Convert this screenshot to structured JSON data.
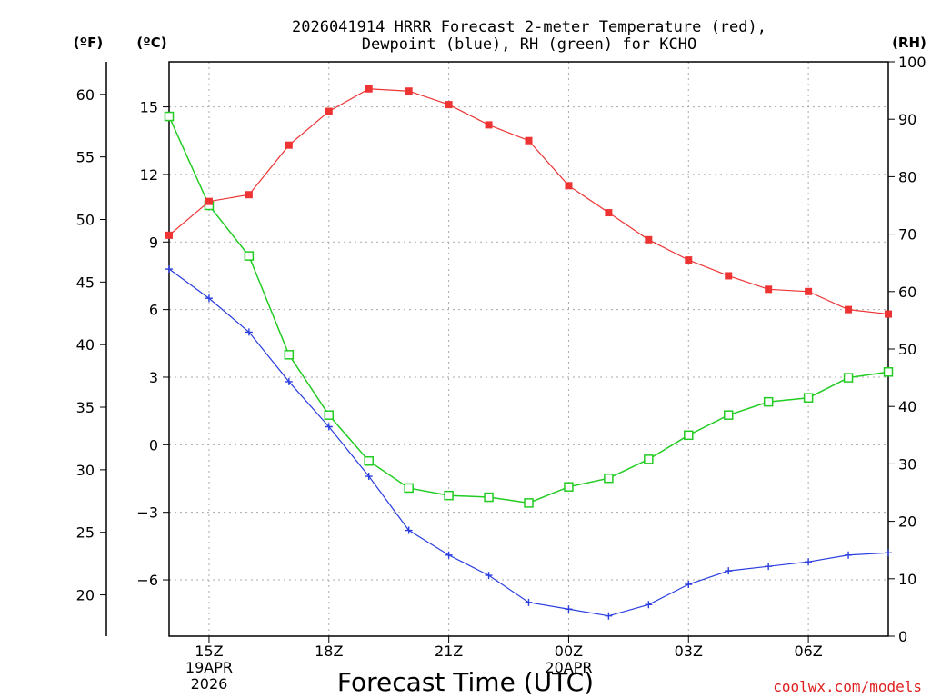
{
  "chart_data": {
    "type": "line",
    "title_line1": "2026041914 HRRR Forecast 2-meter Temperature (red),",
    "title_line2": "Dewpoint (blue), RH (green) for KCHO",
    "units": {
      "fahrenheit": "(ºF)",
      "celsius": "(ºC)",
      "rh": "(RH)"
    },
    "xlabel": "Forecast Time (UTC)",
    "credit": "coolwx.com/models",
    "x_hours": [
      14,
      15,
      16,
      17,
      18,
      19,
      20,
      21,
      22,
      23,
      24,
      25,
      26,
      27,
      28,
      29,
      30,
      31,
      32
    ],
    "x_ticks": [
      {
        "hour": 15,
        "lines": [
          "15Z",
          "19APR",
          "2026"
        ]
      },
      {
        "hour": 18,
        "lines": [
          "18Z"
        ]
      },
      {
        "hour": 21,
        "lines": [
          "21Z"
        ]
      },
      {
        "hour": 24,
        "lines": [
          "00Z",
          "20APR"
        ]
      },
      {
        "hour": 27,
        "lines": [
          "03Z"
        ]
      },
      {
        "hour": 30,
        "lines": [
          "06Z"
        ]
      }
    ],
    "celsius_ticks": [
      "15",
      "12",
      "9",
      "6",
      "3",
      "0",
      "−3",
      "−6"
    ],
    "celsius_tick_values": [
      15,
      12,
      9,
      6,
      3,
      0,
      -3,
      -6
    ],
    "celsius_range": [
      -8.5,
      17.0
    ],
    "fahrenheit_ticks": [
      "60",
      "55",
      "50",
      "45",
      "40",
      "35",
      "30",
      "25",
      "20"
    ],
    "fahrenheit_tick_values": [
      60,
      55,
      50,
      45,
      40,
      35,
      30,
      25,
      20
    ],
    "rh_ticks": [
      "100",
      "90",
      "80",
      "70",
      "60",
      "50",
      "40",
      "30",
      "20",
      "10",
      "0"
    ],
    "rh_tick_values": [
      100,
      90,
      80,
      70,
      60,
      50,
      40,
      30,
      20,
      10,
      0
    ],
    "rh_range": [
      0,
      100
    ],
    "colors": {
      "temperature": "#ee3333",
      "dewpoint": "#2a3ee0",
      "rh": "#22cc22",
      "credit": "#e02020",
      "grid": "#aaaaaa"
    },
    "series": [
      {
        "name": "Temperature",
        "unit": "C",
        "values": [
          9.3,
          10.8,
          11.1,
          13.3,
          14.8,
          15.8,
          15.7,
          15.1,
          14.2,
          13.5,
          11.5,
          10.3,
          9.1,
          8.2,
          7.5,
          6.9,
          6.8,
          6.0,
          5.8
        ]
      },
      {
        "name": "Dewpoint",
        "unit": "C",
        "values": [
          7.8,
          6.5,
          5.0,
          2.8,
          0.8,
          -1.4,
          -3.8,
          -4.9,
          -5.8,
          -7.0,
          -7.3,
          -7.6,
          -7.1,
          -6.2,
          -5.6,
          -5.4,
          -5.2,
          -4.9,
          -4.8
        ]
      },
      {
        "name": "RH",
        "unit": "%",
        "values": [
          90.5,
          75.0,
          66.2,
          49.0,
          38.5,
          30.5,
          25.8,
          24.5,
          24.2,
          23.2,
          26.0,
          27.5,
          30.8,
          35.0,
          38.5,
          40.8,
          41.5,
          45.0,
          46.0
        ]
      }
    ]
  }
}
